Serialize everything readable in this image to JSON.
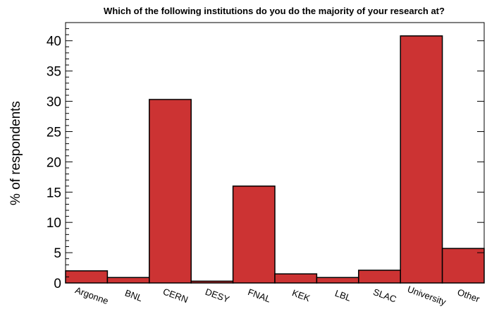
{
  "chart_data": {
    "type": "bar",
    "title": "Which of the following institutions do you do the majority of your research at?",
    "xlabel": "",
    "ylabel": "% of respondents",
    "categories": [
      "Argonne",
      "BNL",
      "CERN",
      "DESY",
      "FNAL",
      "KEK",
      "LBL",
      "SLAC",
      "University",
      "Other"
    ],
    "values": [
      2.0,
      0.9,
      30.3,
      0.3,
      16.0,
      1.5,
      0.9,
      2.1,
      40.8,
      5.7
    ],
    "ylim": [
      0,
      43
    ],
    "yticks": [
      0,
      5,
      10,
      15,
      20,
      25,
      30,
      35,
      40
    ],
    "bar_color": "#cc3333",
    "grid": false,
    "legend": "none"
  }
}
